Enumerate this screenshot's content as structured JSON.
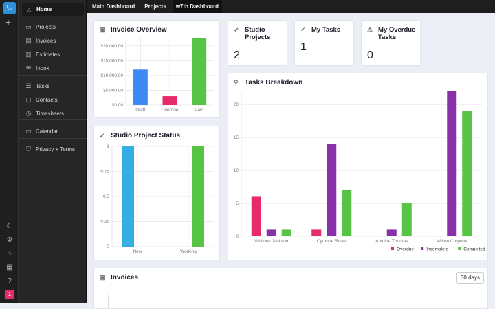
{
  "rail": {
    "badge": "1",
    "icons": [
      "moon-icon",
      "gear-icon",
      "home-edit-icon",
      "apps-icon",
      "help-icon"
    ]
  },
  "sidebar": {
    "items": [
      {
        "label": "Home",
        "icon": "home-icon"
      },
      {
        "label": "Projects",
        "icon": "briefcase-icon"
      },
      {
        "label": "Invoices",
        "icon": "invoice-icon"
      },
      {
        "label": "Estimates",
        "icon": "estimate-icon"
      },
      {
        "label": "Inbox",
        "icon": "inbox-icon"
      },
      {
        "label": "Tasks",
        "icon": "tasks-icon"
      },
      {
        "label": "Contacts",
        "icon": "contacts-icon"
      },
      {
        "label": "Timesheets",
        "icon": "alarm-icon"
      },
      {
        "label": "Calendar",
        "icon": "calendar-icon"
      },
      {
        "label": "Privacy + Terms",
        "icon": "shield-icon"
      }
    ]
  },
  "tabs": [
    {
      "label": "Main Dashboard"
    },
    {
      "label": "Projects"
    },
    {
      "label": "w7th Dashboard",
      "active": true
    }
  ],
  "stats": [
    {
      "title": "Studio Projects",
      "value": "2",
      "icon": "rocket-icon"
    },
    {
      "title": "My Tasks",
      "value": "1",
      "icon": "check-icon"
    },
    {
      "title": "My Overdue Tasks",
      "value": "0",
      "icon": "warning-icon"
    }
  ],
  "invoices_card": {
    "title": "Invoices",
    "range": "30 days"
  },
  "chart_data": [
    {
      "id": "invoice",
      "type": "bar",
      "title": "Invoice Overview",
      "categories": [
        "Draft",
        "Overdue",
        "Paid"
      ],
      "values": [
        12000,
        3000,
        22500
      ],
      "colors": [
        "#3d8af7",
        "#e62a6a",
        "#58c446"
      ],
      "ylim": [
        0,
        22500
      ],
      "yticks": [
        0,
        5000,
        10000,
        15000,
        20000
      ],
      "ytick_labels": [
        "$0.00",
        "$5,000.00",
        "$10,000.00",
        "$15,000.00",
        "$20,000.00"
      ],
      "grid": true
    },
    {
      "id": "status",
      "type": "bar",
      "title": "Studio Project Status",
      "categories": [
        "New",
        "Working"
      ],
      "series": [
        {
          "values": [
            1,
            0
          ],
          "color": "#35aee3"
        },
        {
          "values": [
            0,
            1
          ],
          "color": "#58c446"
        }
      ],
      "ylim": [
        0,
        1
      ],
      "yticks": [
        0,
        0.25,
        0.5,
        0.75,
        1
      ],
      "ytick_labels": [
        "0",
        "0.25",
        "0.5",
        "0.75",
        "1"
      ],
      "grid": true
    },
    {
      "id": "tasks",
      "type": "bar",
      "title": "Tasks Breakdown",
      "categories": [
        "Whitney Jackson",
        "Cymone Rowe",
        "Antoine Thomas",
        "Wilton Corprew"
      ],
      "series": [
        {
          "name": "Overdue",
          "values": [
            6,
            1,
            0,
            0
          ],
          "color": "#e62a6a"
        },
        {
          "name": "Incomplete",
          "values": [
            1,
            14,
            1,
            22
          ],
          "color": "#8730a8"
        },
        {
          "name": "Completed",
          "values": [
            1,
            7,
            5,
            19
          ],
          "color": "#58c446"
        }
      ],
      "ylim": [
        0,
        22
      ],
      "yticks": [
        0,
        5,
        10,
        15,
        20
      ],
      "ytick_labels": [
        "0",
        "5",
        "10",
        "15",
        "20"
      ],
      "grid": true,
      "legend": "bottom-right"
    }
  ]
}
